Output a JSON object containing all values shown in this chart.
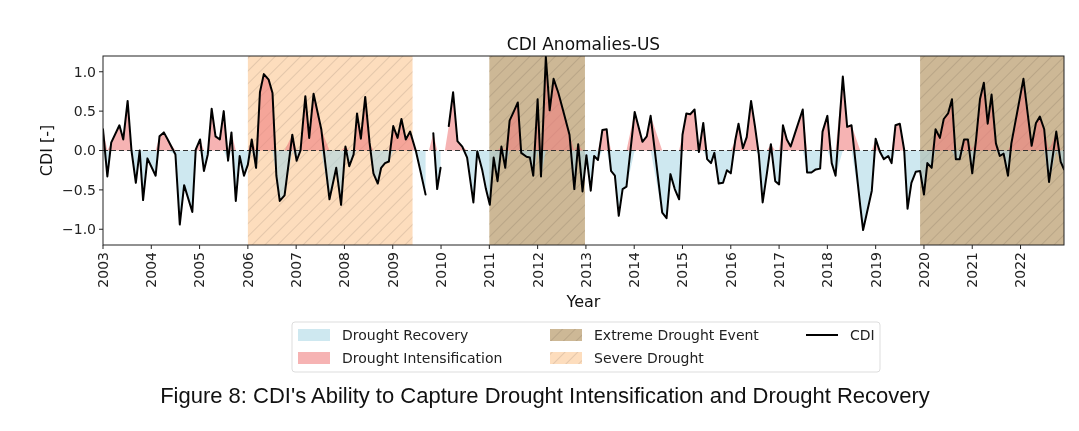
{
  "chart_data": {
    "type": "line",
    "title": "CDI Anomalies-US",
    "xlabel": "Year",
    "ylabel": "CDI [-]",
    "annotations": [
      "Figure 8: CDI's Ability to Capture Drought Intensification and Drought Recovery"
    ],
    "xlim": [
      2003,
      2022.9
    ],
    "xticks": [
      2003,
      2004,
      2005,
      2006,
      2007,
      2008,
      2009,
      2010,
      2011,
      2012,
      2013,
      2014,
      2015,
      2016,
      2017,
      2018,
      2019,
      2020,
      2021,
      2022
    ],
    "ylim": [
      -1.2,
      1.2
    ],
    "yticks": [
      {
        "value": -1,
        "label": "−1.0"
      },
      {
        "value": -0.5,
        "label": "−0.5"
      },
      {
        "value": 0,
        "label": "0.0"
      },
      {
        "value": 0.5,
        "label": "0.5"
      },
      {
        "value": 1,
        "label": "1.0"
      }
    ],
    "legend": "bottom",
    "grid": false,
    "ref_lines": [
      {
        "axis": "y",
        "value": 0,
        "color": "#333333",
        "line_style": "dashed"
      }
    ],
    "bands": [
      {
        "axis": "x",
        "from": 2011,
        "to": 2012.98,
        "label": "Extreme Drought Event",
        "color": "#cdb896"
      },
      {
        "axis": "x",
        "from": 2006,
        "to": 2009.41,
        "label": "Severe Drought",
        "color": "#fdddbd"
      },
      {
        "axis": "x",
        "from": 2019.92,
        "to": 2022.9,
        "color": "#cdb896"
      }
    ],
    "x": [
      2003.0,
      2003.09,
      2003.17,
      2003.34,
      2003.42,
      2003.51,
      2003.59,
      2003.68,
      2003.76,
      2003.83,
      2003.92,
      2004.09,
      2004.17,
      2004.26,
      2004.34,
      2004.5,
      2004.59,
      2004.68,
      2004.85,
      2004.92,
      2005.01,
      2005.09,
      2005.17,
      2005.25,
      2005.33,
      2005.42,
      2005.5,
      2005.59,
      2005.66,
      2005.75,
      2005.83,
      2005.92,
      2006.0,
      2006.08,
      2006.17,
      2006.25,
      2006.33,
      2006.43,
      2006.51,
      2006.59,
      2006.66,
      2006.76,
      2006.92,
      2007.01,
      2007.09,
      2007.19,
      2007.27,
      2007.36,
      2007.52,
      2007.69,
      2007.83,
      2007.93,
      2008.02,
      2008.1,
      2008.19,
      2008.26,
      2008.34,
      2008.43,
      2008.52,
      2008.6,
      2008.69,
      2008.76,
      2008.84,
      2008.92,
      2009.01,
      2009.1,
      2009.18,
      2009.27,
      2009.36,
      2009.48,
      2009.58,
      2009.68,
      2009.75,
      2009.84,
      2009.92,
      2009.99,
      2010.08,
      2010.16,
      2010.25,
      2010.34,
      2010.44,
      2010.54,
      2010.67,
      2010.75,
      2010.85,
      2010.93,
      2011.01,
      2011.09,
      2011.17,
      2011.25,
      2011.33,
      2011.42,
      2011.51,
      2011.59,
      2011.66,
      2011.77,
      2011.84,
      2011.91,
      2012.0,
      2012.07,
      2012.17,
      2012.25,
      2012.33,
      2012.43,
      2012.54,
      2012.66,
      2012.76,
      2012.84,
      2012.93,
      2013.01,
      2013.1,
      2013.17,
      2013.25,
      2013.34,
      2013.43,
      2013.52,
      2013.6,
      2013.68,
      2013.76,
      2013.84,
      2014.01,
      2014.17,
      2014.26,
      2014.34,
      2014.58,
      2014.67,
      2014.75,
      2014.84,
      2014.93,
      2015.0,
      2015.08,
      2015.16,
      2015.25,
      2015.34,
      2015.43,
      2015.51,
      2015.59,
      2015.66,
      2015.75,
      2015.84,
      2015.92,
      2016.0,
      2016.09,
      2016.16,
      2016.25,
      2016.33,
      2016.42,
      2016.5,
      2016.58,
      2016.66,
      2016.75,
      2016.83,
      2016.92,
      2017.0,
      2017.08,
      2017.16,
      2017.24,
      2017.33,
      2017.49,
      2017.58,
      2017.67,
      2017.76,
      2017.85,
      2017.9,
      2018.0,
      2018.09,
      2018.17,
      2018.32,
      2018.41,
      2018.5,
      2018.68,
      2018.74,
      2018.92,
      2019.0,
      2019.09,
      2019.17,
      2019.26,
      2019.33,
      2019.41,
      2019.5,
      2019.59,
      2019.66,
      2019.74,
      2019.83,
      2019.92,
      2020.0,
      2020.07,
      2020.16,
      2020.24,
      2020.33,
      2020.41,
      2020.5,
      2020.58,
      2020.66,
      2020.74,
      2020.83,
      2020.91,
      2021.0,
      2021.08,
      2021.16,
      2021.24,
      2021.32,
      2021.4,
      2021.49,
      2021.57,
      2021.65,
      2021.74,
      2021.81,
      2022.06,
      2022.23,
      2022.32,
      2022.4,
      2022.49,
      2022.59,
      2022.74,
      2022.83,
      2022.9
    ],
    "series": [
      {
        "name": "Drought Recovery",
        "type": "area",
        "color": "#add8e6",
        "values": [
          0,
          -0.33,
          0,
          0,
          0,
          0,
          0,
          -0.41,
          0,
          -0.63,
          -0.1,
          -0.32,
          0,
          0,
          0,
          -0.05,
          -0.94,
          -0.44,
          -0.78,
          0,
          0,
          -0.26,
          -0.05,
          0,
          0,
          0,
          0,
          -0.13,
          0,
          -0.64,
          -0.07,
          -0.32,
          -0.18,
          0,
          -0.22,
          0,
          0,
          0,
          0,
          -0.32,
          -0.64,
          -0.57,
          0,
          -0.13,
          0,
          0,
          0,
          0,
          0,
          -0.62,
          -0.22,
          -0.69,
          0,
          -0.2,
          -0.05,
          0,
          0,
          0,
          0,
          -0.29,
          -0.42,
          -0.22,
          -0.16,
          -0.14,
          0,
          0,
          0,
          0,
          0,
          -0.01,
          -0.28,
          -0.56,
          null,
          0,
          -0.49,
          -0.22,
          null,
          0,
          0,
          0,
          0,
          -0.09,
          -0.66,
          -0.01,
          -0.24,
          -0.49,
          -0.69,
          -0.09,
          -0.39,
          0,
          -0.22,
          0,
          0,
          0,
          -0.03,
          -0.08,
          -0.09,
          -0.32,
          0,
          -0.33,
          0,
          0,
          0,
          0,
          0,
          0,
          -0.49,
          0,
          -0.52,
          -0.06,
          -0.51,
          -0.07,
          -0.12,
          0,
          0,
          -0.26,
          -0.32,
          -0.83,
          -0.49,
          -0.46,
          0,
          0,
          0,
          0,
          -0.79,
          -0.86,
          -0.3,
          -0.49,
          -0.62,
          0,
          0,
          0,
          0,
          -0.02,
          0,
          -0.11,
          -0.16,
          -0.03,
          -0.42,
          -0.41,
          -0.25,
          -0.29,
          0,
          0,
          0,
          0,
          0,
          0,
          -0.05,
          -0.66,
          -0.28,
          0,
          -0.39,
          -0.43,
          0,
          0,
          0,
          0,
          0,
          -0.28,
          -0.28,
          -0.24,
          -0.23,
          0,
          0,
          -0.16,
          -0.32,
          0,
          0,
          0,
          -0.7,
          -1.01,
          -0.51,
          0,
          -0.02,
          -0.11,
          -0.07,
          -0.16,
          0,
          0,
          0,
          -0.74,
          -0.41,
          -0.27,
          -0.26,
          -0.56,
          -0.16,
          -0.22,
          0,
          0,
          0,
          0,
          0,
          -0.11,
          -0.11,
          0,
          0,
          -0.29,
          0,
          0,
          0,
          0,
          0,
          0,
          -0.07,
          -0.04,
          -0.32,
          0,
          0,
          0,
          0,
          0,
          0,
          -0.4,
          0,
          -0.14,
          -0.24
        ]
      },
      {
        "name": "Drought Intensification",
        "type": "area",
        "color": "#f08080",
        "values": [
          0.27,
          0,
          0.1,
          0.32,
          0.14,
          0.63,
          0,
          0,
          0,
          0,
          0,
          0,
          0.18,
          0.23,
          0.14,
          0,
          0,
          0,
          0,
          0.01,
          0.14,
          0,
          0,
          0.53,
          0.18,
          0.14,
          0.5,
          0,
          0.23,
          0,
          0,
          0,
          0,
          0.14,
          0,
          0.74,
          0.97,
          0.9,
          0.73,
          0,
          0,
          0,
          0.2,
          0,
          0,
          0.69,
          0.16,
          0.72,
          0.27,
          0,
          0,
          0,
          0.05,
          0,
          0,
          0.47,
          0.15,
          0.68,
          0.1,
          0,
          0,
          0,
          0,
          0,
          0.31,
          0.16,
          0.4,
          0.14,
          0.24,
          0,
          0,
          0,
          0,
          0.22,
          0,
          0,
          0,
          0.31,
          0.74,
          0.12,
          0.05,
          0,
          0,
          0,
          0,
          0,
          0,
          0,
          0,
          0.05,
          0,
          0.38,
          0.5,
          0.61,
          0,
          0,
          0,
          0,
          0.65,
          0,
          1.19,
          0.51,
          0.91,
          0.73,
          0.48,
          0.2,
          0,
          0.08,
          0,
          0,
          0,
          0,
          0,
          0.26,
          0.27,
          0,
          0,
          0,
          0,
          0,
          0.49,
          0.11,
          0.18,
          0.44,
          0,
          0,
          0,
          0,
          0,
          0.2,
          0.47,
          0.46,
          0.52,
          0,
          0.35,
          0,
          0,
          0,
          0,
          0,
          0,
          0,
          0.12,
          0.34,
          0.03,
          0.17,
          0.63,
          0.31,
          0,
          0,
          0,
          0.08,
          0,
          0,
          0.32,
          0.14,
          0.05,
          0.22,
          0.52,
          0,
          0,
          0,
          0,
          0.24,
          0.44,
          0,
          0,
          0.94,
          0.3,
          0.32,
          0,
          0,
          0,
          0.15,
          0,
          0,
          0,
          0,
          0.32,
          0.34,
          0.01,
          0,
          0,
          0,
          0,
          0,
          0,
          0,
          0.27,
          0.16,
          0.4,
          0.47,
          0.65,
          0,
          0,
          0.14,
          0.14,
          0,
          0.14,
          0.65,
          0.86,
          0.34,
          0.71,
          0.09,
          0,
          0,
          0,
          0.09,
          0.91,
          0.06,
          0.35,
          0.43,
          0.27,
          0,
          0.24,
          0,
          0
        ]
      },
      {
        "name": "CDI",
        "type": "line",
        "color": "#000000",
        "values": [
          0.27,
          -0.33,
          0.1,
          0.32,
          0.14,
          0.63,
          0,
          -0.41,
          0,
          -0.63,
          -0.1,
          -0.32,
          0.18,
          0.23,
          0.14,
          -0.05,
          -0.94,
          -0.44,
          -0.78,
          0.01,
          0.14,
          -0.26,
          -0.05,
          0.53,
          0.18,
          0.14,
          0.5,
          -0.13,
          0.23,
          -0.64,
          -0.07,
          -0.32,
          -0.18,
          0.14,
          -0.22,
          0.74,
          0.97,
          0.9,
          0.73,
          -0.32,
          -0.64,
          -0.57,
          0.2,
          -0.13,
          0,
          0.69,
          0.16,
          0.72,
          0.27,
          -0.62,
          -0.22,
          -0.69,
          0.05,
          -0.2,
          -0.05,
          0.47,
          0.15,
          0.68,
          0.1,
          -0.29,
          -0.42,
          -0.22,
          -0.16,
          -0.14,
          0.31,
          0.16,
          0.4,
          0.14,
          0.24,
          -0.01,
          -0.28,
          -0.56,
          null,
          0.22,
          -0.49,
          -0.22,
          null,
          0.31,
          0.74,
          0.12,
          0.05,
          -0.09,
          -0.66,
          -0.01,
          -0.24,
          -0.49,
          -0.69,
          -0.09,
          -0.39,
          0.05,
          -0.22,
          0.38,
          0.5,
          0.61,
          -0.03,
          -0.08,
          -0.09,
          -0.32,
          0.65,
          -0.33,
          1.19,
          0.51,
          0.91,
          0.73,
          0.48,
          0.2,
          -0.49,
          0.08,
          -0.52,
          -0.06,
          -0.51,
          -0.07,
          -0.12,
          0.26,
          0.27,
          -0.26,
          -0.32,
          -0.83,
          -0.49,
          -0.46,
          0.49,
          0.11,
          0.18,
          0.44,
          -0.79,
          -0.86,
          -0.3,
          -0.49,
          -0.62,
          0.2,
          0.47,
          0.46,
          0.52,
          -0.02,
          0.35,
          -0.11,
          -0.16,
          -0.03,
          -0.42,
          -0.41,
          -0.25,
          -0.29,
          0.12,
          0.34,
          0.03,
          0.17,
          0.63,
          0.31,
          -0.05,
          -0.66,
          -0.28,
          0.08,
          -0.39,
          -0.43,
          0.32,
          0.14,
          0.05,
          0.22,
          0.52,
          -0.28,
          -0.28,
          -0.24,
          -0.23,
          0.24,
          0.44,
          -0.16,
          -0.32,
          0.94,
          0.3,
          0.32,
          -0.7,
          -1.01,
          -0.51,
          0.15,
          -0.02,
          -0.11,
          -0.07,
          -0.16,
          0.32,
          0.34,
          0.01,
          -0.74,
          -0.41,
          -0.27,
          -0.26,
          -0.56,
          -0.16,
          -0.22,
          0.27,
          0.16,
          0.4,
          0.47,
          0.65,
          -0.11,
          -0.11,
          0.14,
          0.14,
          -0.29,
          0.14,
          0.65,
          0.86,
          0.34,
          0.71,
          0.09,
          -0.07,
          -0.04,
          -0.32,
          0.09,
          0.91,
          0.06,
          0.35,
          0.43,
          0.27,
          -0.4,
          0.24,
          -0.14,
          -0.24
        ]
      }
    ]
  }
}
